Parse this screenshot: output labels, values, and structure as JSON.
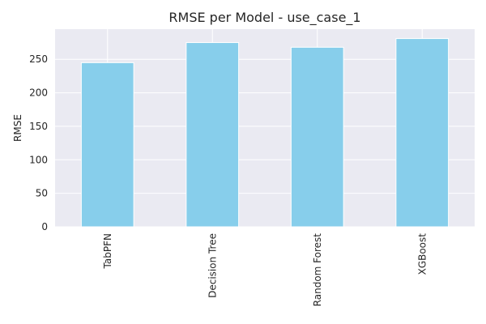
{
  "chart_data": {
    "type": "bar",
    "title": "RMSE per Model - use_case_1",
    "xlabel": "",
    "ylabel": "RMSE",
    "categories": [
      "TabPFN",
      "Decision Tree",
      "Random Forest",
      "XGBoost"
    ],
    "values": [
      245,
      275,
      268,
      281
    ],
    "ylim": [
      0,
      295
    ],
    "yticks": [
      0,
      50,
      100,
      150,
      200,
      250
    ],
    "bar_color": "#87CEEB",
    "background_color": "#EAEAF2",
    "grid_color": "#FFFFFF",
    "grid": true,
    "legend": "none"
  }
}
